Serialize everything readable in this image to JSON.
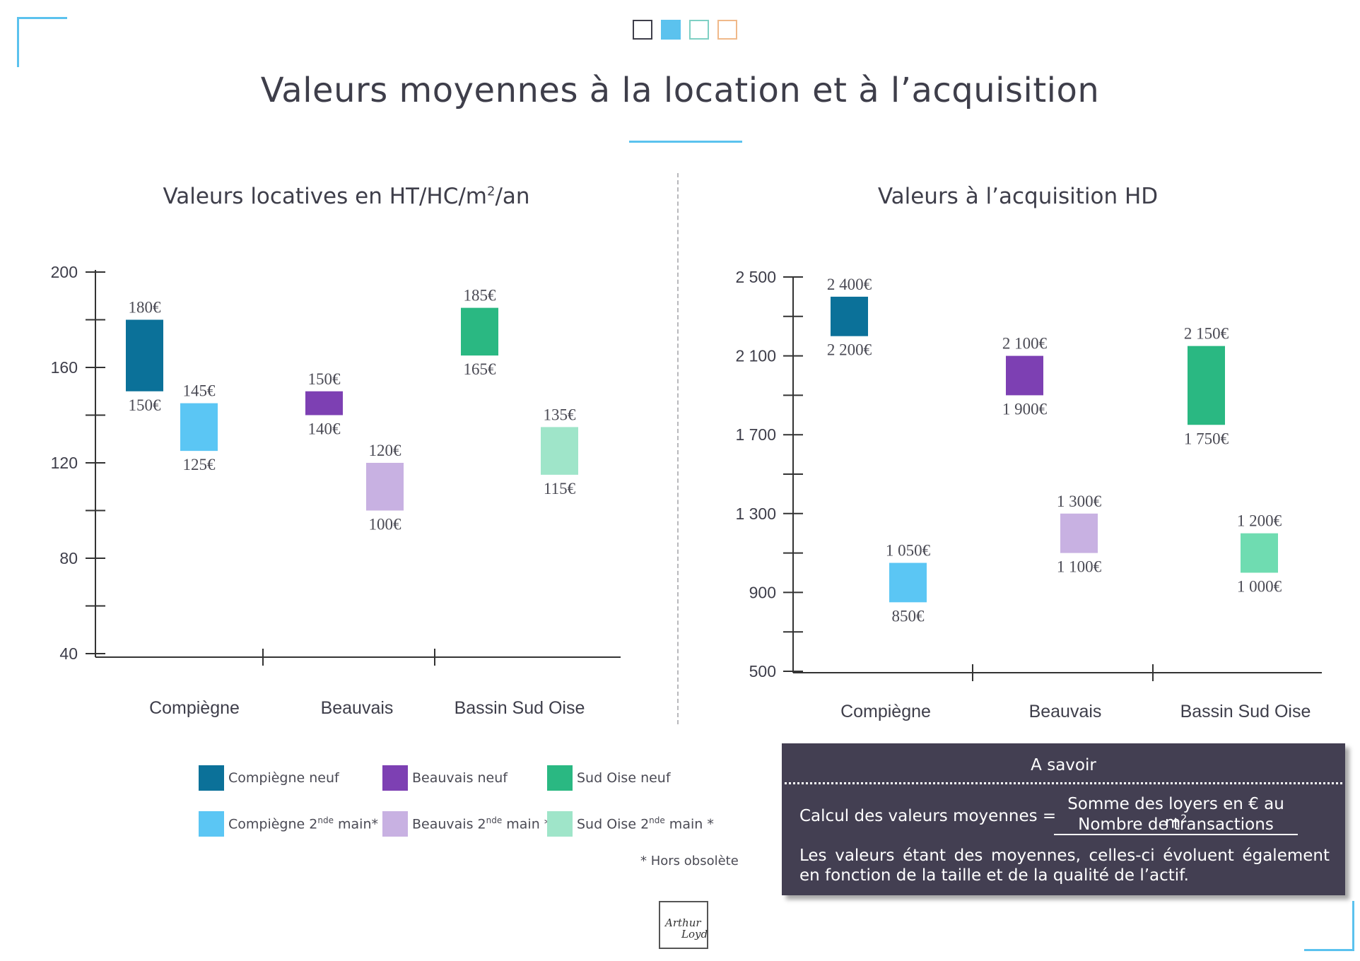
{
  "header": {
    "title": "Valeurs moyennes à la location et à l’acquisition",
    "square_colors": [
      "#ffffff",
      "#5bc2ee",
      "#ffffff",
      "#ffffff"
    ],
    "square_borders": [
      "#3e3e4a",
      "#5bc2ee",
      "#7fd0c4",
      "#f0b98a"
    ]
  },
  "chart_data": [
    {
      "type": "bar",
      "subtype": "floating-range",
      "title": "Valeurs locatives en HT/HC/m²/an",
      "title_parts": [
        "Valeurs locatives en HT/HC/m",
        "2",
        "/an"
      ],
      "categories": [
        "Compiègne",
        "Beauvais",
        "Bassin Sud Oise"
      ],
      "ylim": [
        40,
        200
      ],
      "yticks": [
        40,
        80,
        120,
        160,
        200
      ],
      "series": [
        {
          "name": "Compiègne neuf",
          "category": "Compiègne",
          "low": 150,
          "high": 180,
          "low_label": "150€",
          "high_label": "180€",
          "color": "#0b7199"
        },
        {
          "name": "Compiègne 2nde main*",
          "category": "Compiègne",
          "low": 125,
          "high": 145,
          "low_label": "125€",
          "high_label": "145€",
          "color": "#5bc6f4"
        },
        {
          "name": "Beauvais neuf",
          "category": "Beauvais",
          "low": 140,
          "high": 150,
          "low_label": "140€",
          "high_label": "150€",
          "color": "#7d40b3"
        },
        {
          "name": "Beauvais 2nde main *",
          "category": "Beauvais",
          "low": 100,
          "high": 120,
          "low_label": "100€",
          "high_label": "120€",
          "color": "#c8b1e2"
        },
        {
          "name": "Sud Oise neuf",
          "category": "Bassin Sud Oise",
          "low": 165,
          "high": 185,
          "low_label": "165€",
          "high_label": "185€",
          "color": "#2ab882"
        },
        {
          "name": "Sud Oise 2nde main *",
          "category": "Bassin Sud Oise",
          "low": 115,
          "high": 135,
          "low_label": "115€",
          "high_label": "135€",
          "color": "#9fe5c9"
        }
      ]
    },
    {
      "type": "bar",
      "subtype": "floating-range",
      "title": "Valeurs à l’acquisition HD",
      "categories": [
        "Compiègne",
        "Beauvais",
        "Bassin Sud Oise"
      ],
      "ylim": [
        500,
        2500
      ],
      "yticks": [
        500,
        900,
        1300,
        1700,
        2100,
        2500
      ],
      "ytick_labels": [
        "500",
        "900",
        "1 300",
        "1 700",
        "2 100",
        "2 500"
      ],
      "series": [
        {
          "name": "Compiègne neuf",
          "category": "Compiègne",
          "low": 2200,
          "high": 2400,
          "low_label": "2 200€",
          "high_label": "2 400€",
          "color": "#0b7199"
        },
        {
          "name": "Compiègne 2nde main*",
          "category": "Compiègne",
          "low": 850,
          "high": 1050,
          "low_label": "850€",
          "high_label": "1 050€",
          "color": "#5bc6f4"
        },
        {
          "name": "Beauvais neuf",
          "category": "Beauvais",
          "low": 1900,
          "high": 2100,
          "low_label": "1 900€",
          "high_label": "2 100€",
          "color": "#7d40b3"
        },
        {
          "name": "Beauvais 2nde main *",
          "category": "Beauvais",
          "low": 1100,
          "high": 1300,
          "low_label": "1 100€",
          "high_label": "1 300€",
          "color": "#c8b1e2"
        },
        {
          "name": "Sud Oise neuf",
          "category": "Bassin Sud Oise",
          "low": 1750,
          "high": 2150,
          "low_label": "1 750€",
          "high_label": "2 150€",
          "color": "#2ab882"
        },
        {
          "name": "Sud Oise 2nde main *",
          "category": "Bassin Sud Oise",
          "low": 1000,
          "high": 1200,
          "low_label": "1 000€",
          "high_label": "1 200€",
          "color": "#6fdcb1"
        }
      ]
    }
  ],
  "legend": {
    "items": [
      {
        "name": "Compiègne neuf",
        "color": "#0b7199"
      },
      {
        "name": "Beauvais neuf",
        "color": "#7d40b3"
      },
      {
        "name": "Sud Oise neuf",
        "color": "#2ab882"
      },
      {
        "name": "Compiègne 2nde main*",
        "label_base": "Compiègne 2",
        "label_sup": "nde",
        "label_rest": " main*",
        "color": "#5bc6f4"
      },
      {
        "name": "Beauvais 2nde main *",
        "label_base": "Beauvais 2",
        "label_sup": "nde",
        "label_rest": " main *",
        "color": "#c8b1e2"
      },
      {
        "name": "Sud Oise 2nde main *",
        "label_base": "Sud Oise 2",
        "label_sup": "nde",
        "label_rest": " main *",
        "color": "#9fe5c9"
      }
    ],
    "footnote": "* Hors obsolète"
  },
  "info_box": {
    "title": "A savoir",
    "formula_label": "Calcul des valeurs moyennes =",
    "numerator_base": "Somme des loyers en € au m",
    "numerator_sup": "2",
    "denominator": "Nombre de transactions",
    "text": "Les valeurs étant des moyennes, celles-ci évoluent également en fonction de la taille et de la qualité de l’actif."
  },
  "logo": {
    "line1": "Arthur",
    "line2": "Loyd"
  }
}
